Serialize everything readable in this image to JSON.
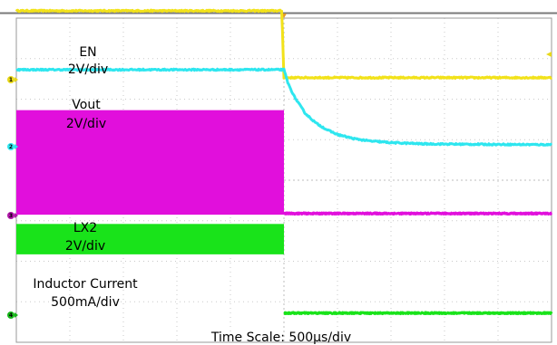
{
  "chart_data": {
    "type": "line",
    "title": "",
    "xlabel": "Time Scale: 500µs/div",
    "ylabel": "",
    "x_unit": "µs",
    "xlim": [
      -2500,
      2500
    ],
    "x_per_div": 500,
    "grid": true,
    "legend": "none",
    "trigger_time": 0,
    "series": [
      {
        "name": "EN",
        "scale": "2V/div",
        "color": "#f2e21a",
        "marker": "1",
        "marker_color": "#e8d81a",
        "ground_div": 0,
        "points": [
          [
            -2500,
            1.7
          ],
          [
            -20,
            1.7
          ],
          [
            0,
            0.05
          ],
          [
            2500,
            0.05
          ]
        ]
      },
      {
        "name": "Vout",
        "scale": "2V/div",
        "color": "#2ee6ef",
        "marker": "2",
        "marker_color": "#2ee6ef",
        "ground_div": 0,
        "points": [
          [
            -2500,
            1.9
          ],
          [
            0,
            1.9
          ],
          [
            40,
            1.55
          ],
          [
            100,
            1.22
          ],
          [
            200,
            0.82
          ],
          [
            300,
            0.58
          ],
          [
            400,
            0.42
          ],
          [
            500,
            0.3
          ],
          [
            650,
            0.2
          ],
          [
            800,
            0.14
          ],
          [
            1000,
            0.1
          ],
          [
            1300,
            0.07
          ],
          [
            1700,
            0.06
          ],
          [
            2500,
            0.05
          ]
        ]
      },
      {
        "name": "LX2",
        "scale": "2V/div",
        "color": "#e10fdc",
        "marker": "3",
        "marker_color": "#b017a8",
        "ground_div": 0,
        "switching_until": 0,
        "switching_band": [
          0.02,
          2.6
        ],
        "points": [
          [
            0,
            0.05
          ],
          [
            2500,
            0.05
          ]
        ]
      },
      {
        "name": "Inductor Current",
        "scale": "500mA/div",
        "color": "#19e31a",
        "marker": "4",
        "marker_color": "#15b418",
        "ground_div": 0,
        "ripple_until": 0,
        "ripple_band": [
          1.5,
          2.25
        ],
        "points": [
          [
            0,
            0.05
          ],
          [
            2500,
            0.05
          ]
        ]
      }
    ]
  }
}
